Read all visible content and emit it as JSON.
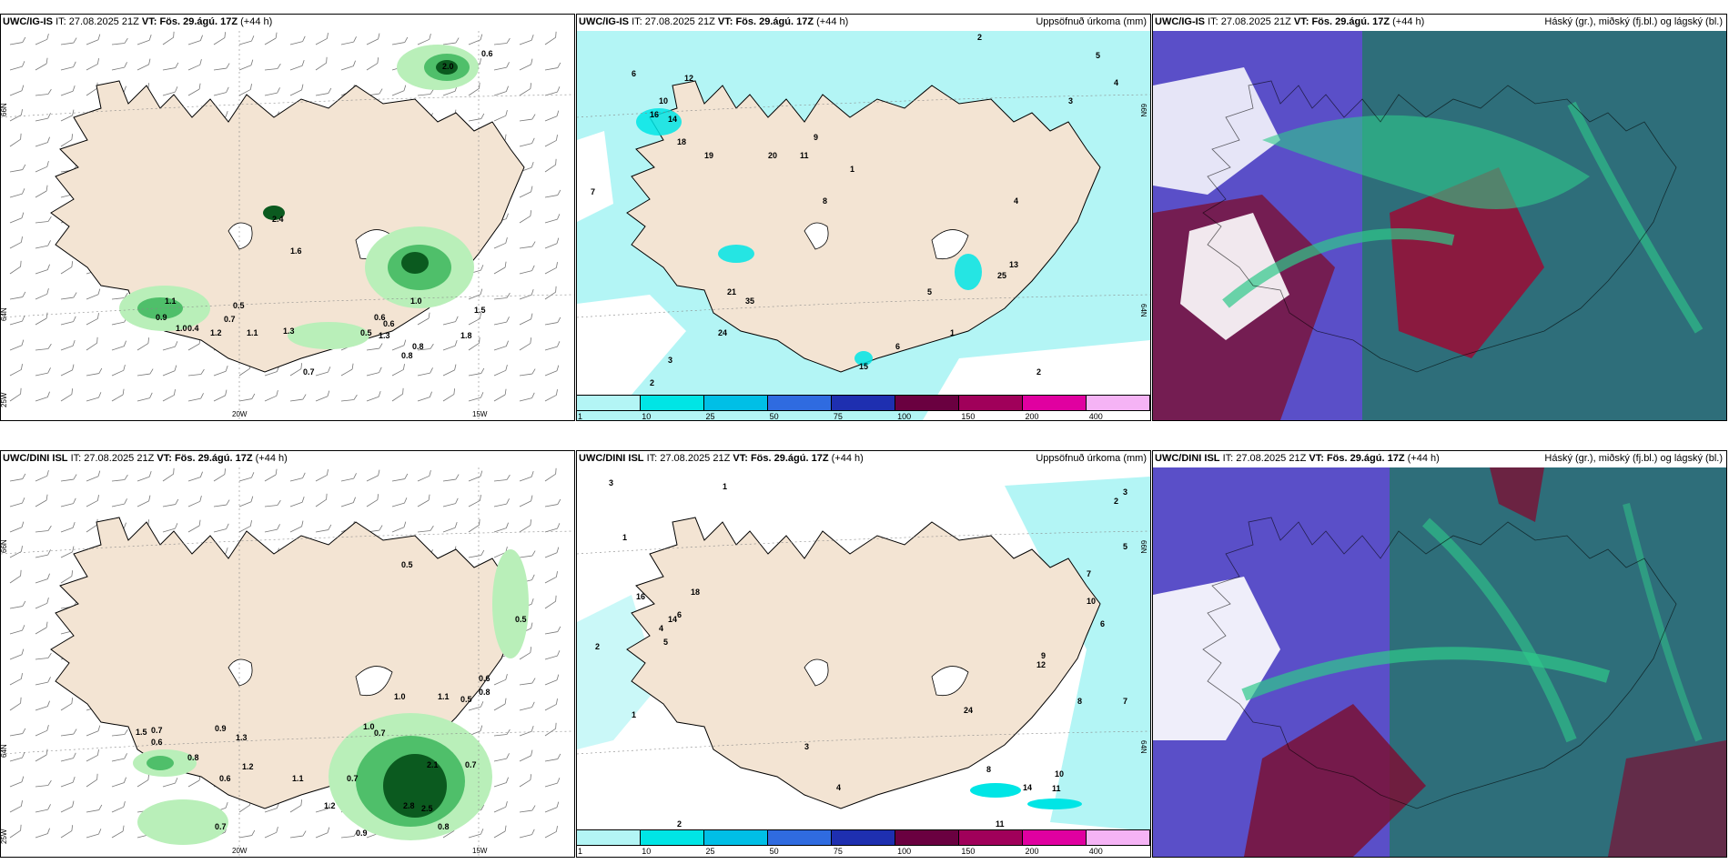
{
  "panels": {
    "top_left": {
      "model": "UWC/IG-IS",
      "it_label": "IT:",
      "it_value": "27.08.2025 21Z",
      "vt_label": "VT:",
      "vt_value": "Fös. 29.ágú. 17Z",
      "lead": "(+44 h)",
      "lat_labels": [
        "66N",
        "64N",
        "25W"
      ],
      "lon_labels": [
        "20W",
        "15W"
      ],
      "values": [
        "2.0",
        "0.6",
        "2.4",
        "1.6",
        "0.5",
        "0.7",
        "1.3",
        "0.5",
        "0.7",
        "1.1",
        "0.9",
        "1.0",
        "0.4",
        "1.2",
        "0.6",
        "1.1",
        "0.8",
        "0.6",
        "0.8",
        "1.0",
        "1.8",
        "1.3",
        "1.5"
      ]
    },
    "top_middle": {
      "model": "UWC/IG-IS",
      "it_label": "IT:",
      "it_value": "27.08.2025 21Z",
      "vt_label": "VT:",
      "vt_value": "Fös. 29.ágú. 17Z",
      "lead": "(+44 h)",
      "right_title": "Uppsöfnuð úrkoma (mm)",
      "lat_labels": [
        "66N",
        "64N"
      ],
      "values": [
        "2",
        "5",
        "4",
        "3",
        "6",
        "7",
        "10",
        "12",
        "14",
        "16",
        "18",
        "19",
        "20",
        "11",
        "9",
        "8",
        "21",
        "35",
        "24",
        "15",
        "13",
        "1",
        "25",
        "2",
        "3",
        "4",
        "5",
        "6",
        "2",
        "1"
      ]
    },
    "top_right": {
      "model": "UWC/IG-IS",
      "it_label": "IT:",
      "it_value": "27.08.2025 21Z",
      "vt_label": "VT:",
      "vt_value": "Fös. 29.ágú. 17Z",
      "lead": "(+44 h)",
      "right_title": "Háský (gr.), miðský (fj.bl.) og lágský (bl.)"
    },
    "bottom_left": {
      "model": "UWC/DINI ISL",
      "it_label": "IT:",
      "it_value": "27.08.2025 21Z",
      "vt_label": "VT:",
      "vt_value": "Fös. 29.ágú. 17Z",
      "lead": "(+44 h)",
      "lat_labels": [
        "66N",
        "64N",
        "25W"
      ],
      "lon_labels": [
        "20W",
        "15W"
      ],
      "values": [
        "0.5",
        "0.5",
        "0.6",
        "0.8",
        "0.7",
        "0.6",
        "0.9",
        "1.3",
        "1.0",
        "1.1",
        "0.5",
        "0.7",
        "0.8",
        "1.2",
        "1.1",
        "1.0",
        "0.7",
        "2.8",
        "2.5",
        "1.2",
        "0.8",
        "0.7",
        "0.9",
        "0.6",
        "1.5",
        "0.7",
        "2.1"
      ]
    },
    "bottom_middle": {
      "model": "UWC/DINI ISL",
      "it_label": "IT:",
      "it_value": "27.08.2025 21Z",
      "vt_label": "VT:",
      "vt_value": "Fös. 29.ágú. 17Z",
      "lead": "(+44 h)",
      "right_title": "Uppsöfnuð úrkoma (mm)",
      "lat_labels": [
        "66N",
        "64N"
      ],
      "values": [
        "3",
        "1",
        "2",
        "4",
        "5",
        "6",
        "7",
        "8",
        "9",
        "10",
        "12",
        "14",
        "16",
        "18",
        "11",
        "24",
        "1",
        "2",
        "3",
        "5",
        "6",
        "7",
        "14",
        "11",
        "10",
        "8",
        "1",
        "2",
        "3",
        "4"
      ]
    },
    "bottom_right": {
      "model": "UWC/DINI ISL",
      "it_label": "IT:",
      "it_value": "27.08.2025 21Z",
      "vt_label": "VT:",
      "vt_value": "Fös. 29.ágú. 17Z",
      "lead": "(+44 h)",
      "right_title": "Háský (gr.), miðský (fj.bl.) og lágský (bl.)"
    }
  },
  "colorbar": {
    "labels": [
      "1",
      "10",
      "25",
      "50",
      "75",
      "100",
      "150",
      "200",
      "400"
    ],
    "colors": [
      "#b3f5f5",
      "#00e5e5",
      "#00bfe6",
      "#2f6be0",
      "#1e2fb0",
      "#6a0040",
      "#a0005a",
      "#e000a0",
      "#f5b3f5"
    ]
  },
  "colors": {
    "land": "#f3e4d3",
    "sea": "#ffffff",
    "green_light": "#b9efb9",
    "green_mid": "#4fbf6a",
    "green_dark": "#0b5a1f",
    "precip_light": "#b3f5f5",
    "cloud_high": "#2fc98a",
    "cloud_mid": "#3a4fc8",
    "cloud_low": "#7a1035",
    "cloud_bg": "#2e6e7a"
  }
}
